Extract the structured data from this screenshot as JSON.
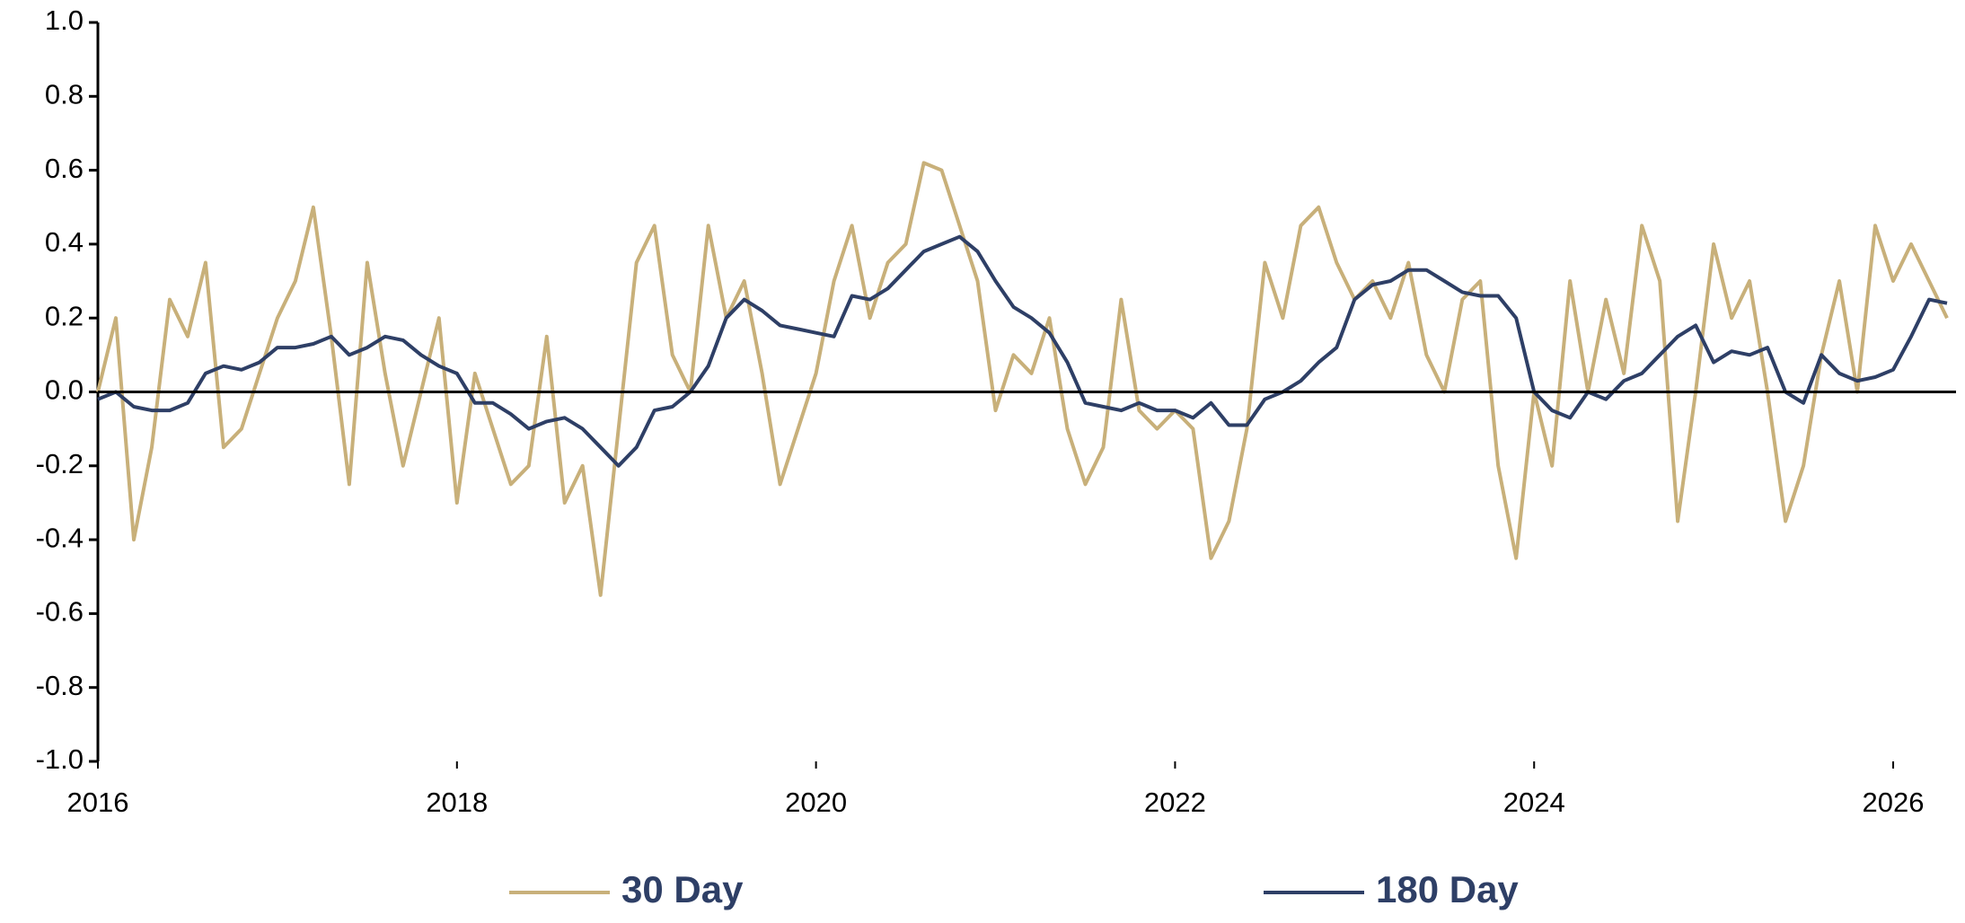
{
  "chart_data": {
    "type": "line",
    "x": [
      2016,
      2016.1,
      2016.2,
      2016.3,
      2016.4,
      2016.5,
      2016.6,
      2016.7,
      2016.8,
      2016.9,
      2017,
      2017.1,
      2017.2,
      2017.3,
      2017.4,
      2017.5,
      2017.6,
      2017.7,
      2017.8,
      2017.9,
      2018,
      2018.1,
      2018.2,
      2018.3,
      2018.4,
      2018.5,
      2018.6,
      2018.7,
      2018.8,
      2018.9,
      2019,
      2019.1,
      2019.2,
      2019.3,
      2019.4,
      2019.5,
      2019.6,
      2019.7,
      2019.8,
      2019.9,
      2020,
      2020.1,
      2020.2,
      2020.3,
      2020.4,
      2020.5,
      2020.6,
      2020.7,
      2020.8,
      2020.9,
      2021,
      2021.1,
      2021.2,
      2021.3,
      2021.4,
      2021.5,
      2021.6,
      2021.7,
      2021.8,
      2021.9,
      2022,
      2022.1,
      2022.2,
      2022.3,
      2022.4,
      2022.5,
      2022.6,
      2022.7,
      2022.8,
      2022.9,
      2023,
      2023.1,
      2023.2,
      2023.3,
      2023.4,
      2023.5,
      2023.6,
      2023.7,
      2023.8,
      2023.9,
      2024,
      2024.1,
      2024.2,
      2024.3,
      2024.4,
      2024.5,
      2024.6,
      2024.7,
      2024.8,
      2024.9,
      2025,
      2025.1,
      2025.2,
      2025.3,
      2025.4,
      2025.5,
      2025.6,
      2025.7,
      2025.8,
      2025.9,
      2026,
      2026.1,
      2026.2,
      2026.3
    ],
    "series": [
      {
        "name": "30 Day",
        "color": "#c8b07a",
        "values": [
          0,
          0.2,
          -0.4,
          -0.15,
          0.25,
          0.15,
          0.35,
          -0.15,
          -0.1,
          0.05,
          0.2,
          0.3,
          0.5,
          0.15,
          -0.25,
          0.35,
          0.05,
          -0.2,
          0,
          0.2,
          -0.3,
          0.05,
          -0.1,
          -0.25,
          -0.2,
          0.15,
          -0.3,
          -0.2,
          -0.55,
          -0.1,
          0.35,
          0.45,
          0.1,
          0,
          0.45,
          0.2,
          0.3,
          0.05,
          -0.25,
          -0.1,
          0.05,
          0.3,
          0.45,
          0.2,
          0.35,
          0.4,
          0.62,
          0.6,
          0.45,
          0.3,
          -0.05,
          0.1,
          0.05,
          0.2,
          -0.1,
          -0.25,
          -0.15,
          0.25,
          -0.05,
          -0.1,
          -0.05,
          -0.1,
          -0.45,
          -0.35,
          -0.1,
          0.35,
          0.2,
          0.45,
          0.5,
          0.35,
          0.25,
          0.3,
          0.2,
          0.35,
          0.1,
          0,
          0.25,
          0.3,
          -0.2,
          -0.45,
          0,
          -0.2,
          0.3,
          0,
          0.25,
          0.05,
          0.45,
          0.3,
          -0.35,
          0,
          0.4,
          0.2,
          0.3,
          0,
          -0.35,
          -0.2,
          0.1,
          0.3,
          0,
          0.45,
          0.3,
          0.4,
          0.3,
          0.2
        ]
      },
      {
        "name": "180 Day",
        "color": "#2e3f66",
        "values": [
          -0.02,
          0,
          -0.04,
          -0.05,
          -0.05,
          -0.03,
          0.05,
          0.07,
          0.06,
          0.08,
          0.12,
          0.12,
          0.13,
          0.15,
          0.1,
          0.12,
          0.15,
          0.14,
          0.1,
          0.07,
          0.05,
          -0.03,
          -0.03,
          -0.06,
          -0.1,
          -0.08,
          -0.07,
          -0.1,
          -0.15,
          -0.2,
          -0.15,
          -0.05,
          -0.04,
          0,
          0.07,
          0.2,
          0.25,
          0.22,
          0.18,
          0.17,
          0.16,
          0.15,
          0.26,
          0.25,
          0.28,
          0.33,
          0.38,
          0.4,
          0.42,
          0.38,
          0.3,
          0.23,
          0.2,
          0.16,
          0.08,
          -0.03,
          -0.04,
          -0.05,
          -0.03,
          -0.05,
          -0.05,
          -0.07,
          -0.03,
          -0.09,
          -0.09,
          -0.02,
          0,
          0.03,
          0.08,
          0.12,
          0.25,
          0.29,
          0.3,
          0.33,
          0.33,
          0.3,
          0.27,
          0.26,
          0.26,
          0.2,
          0,
          -0.05,
          -0.07,
          0,
          -0.02,
          0.03,
          0.05,
          0.1,
          0.15,
          0.18,
          0.08,
          0.11,
          0.1,
          0.12,
          0,
          -0.03,
          0.1,
          0.05,
          0.03,
          0.04,
          0.06,
          0.15,
          0.25,
          0.24
        ]
      }
    ],
    "xlim": [
      2016,
      2026.35
    ],
    "xticks": [
      2016,
      2018,
      2020,
      2022,
      2024,
      2026
    ],
    "ylim": [
      -1,
      1
    ],
    "yticks": [
      {
        "value": -1,
        "label": "-1.0"
      },
      {
        "value": -0.8,
        "label": "-0.8"
      },
      {
        "value": -0.6,
        "label": "-0.6"
      },
      {
        "value": -0.4,
        "label": "-0.4"
      },
      {
        "value": -0.2,
        "label": "-0.2"
      },
      {
        "value": 0,
        "label": "0.0"
      },
      {
        "value": 0.2,
        "label": "0.2"
      },
      {
        "value": 0.4,
        "label": "0.4"
      },
      {
        "value": 0.6,
        "label": "0.6"
      },
      {
        "value": 0.8,
        "label": "0.8"
      },
      {
        "value": 1,
        "label": "1.0"
      }
    ],
    "grid": false,
    "legend": "bottom"
  }
}
